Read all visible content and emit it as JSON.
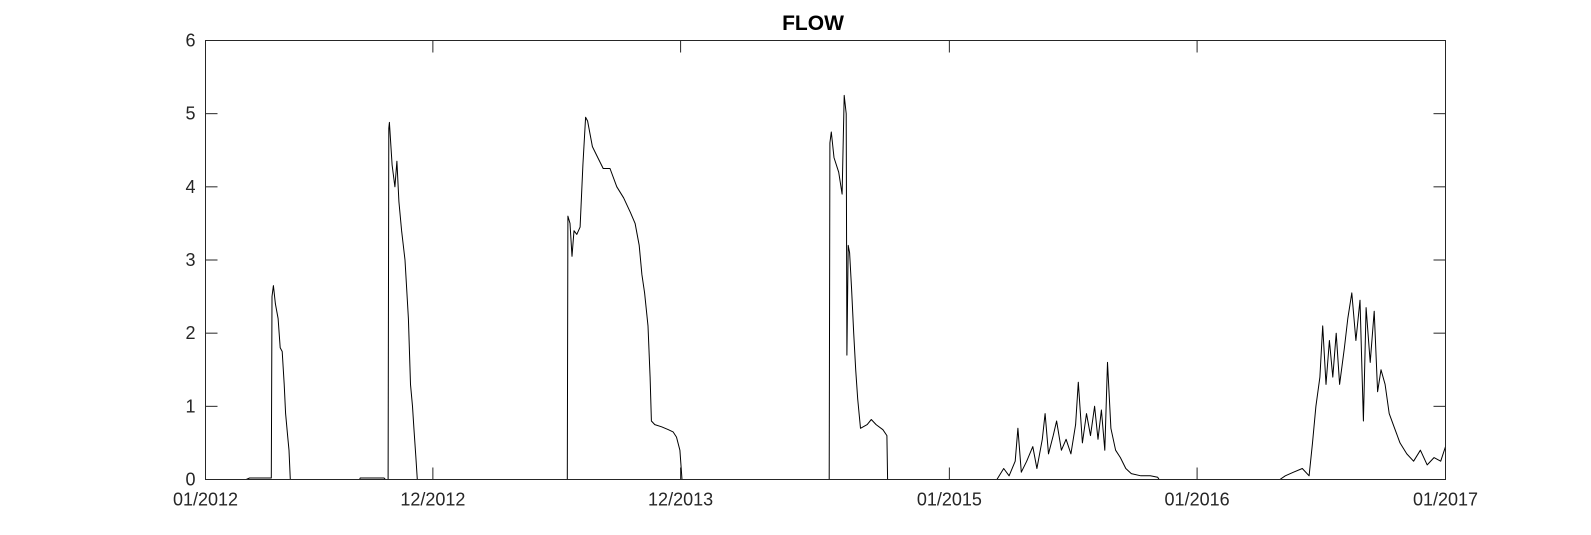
{
  "chart_data": {
    "type": "line",
    "title": "FLOW",
    "xlabel": "",
    "ylabel": "",
    "x_axis": {
      "type": "date",
      "range": [
        "2012-01-01",
        "2017-01-01"
      ],
      "ticks": [
        {
          "date": "2012-01-01",
          "label": "01/2012"
        },
        {
          "date": "2012-12-01",
          "label": "12/2012"
        },
        {
          "date": "2013-12-01",
          "label": "12/2013"
        },
        {
          "date": "2015-01-01",
          "label": "01/2015"
        },
        {
          "date": "2016-01-01",
          "label": "01/2016"
        },
        {
          "date": "2017-01-01",
          "label": "01/2017"
        }
      ]
    },
    "ylim": [
      0,
      6
    ],
    "yticks": [
      0,
      1,
      2,
      3,
      4,
      5,
      6
    ],
    "grid": false,
    "legend": "none",
    "line_color": "#000000",
    "series": [
      {
        "points": [
          [
            "2012-01-01",
            0
          ],
          [
            "2012-03-01",
            0
          ],
          [
            "2012-03-06",
            0.02
          ],
          [
            "2012-04-07",
            0.02
          ],
          [
            "2012-04-08",
            2.5
          ],
          [
            "2012-04-10",
            2.65
          ],
          [
            "2012-04-13",
            2.4
          ],
          [
            "2012-04-17",
            2.2
          ],
          [
            "2012-04-20",
            1.8
          ],
          [
            "2012-04-23",
            1.75
          ],
          [
            "2012-04-26",
            1.3
          ],
          [
            "2012-04-28",
            0.9
          ],
          [
            "2012-05-01",
            0.6
          ],
          [
            "2012-05-03",
            0.4
          ],
          [
            "2012-05-05",
            0
          ],
          [
            "2012-08-15",
            0
          ],
          [
            "2012-08-16",
            0.02
          ],
          [
            "2012-09-20",
            0.02
          ],
          [
            "2012-09-22",
            0
          ],
          [
            "2012-09-26",
            0
          ],
          [
            "2012-09-27",
            4.8
          ],
          [
            "2012-09-28",
            4.88
          ],
          [
            "2012-10-02",
            4.3
          ],
          [
            "2012-10-06",
            4.0
          ],
          [
            "2012-10-09",
            4.35
          ],
          [
            "2012-10-12",
            3.8
          ],
          [
            "2012-10-16",
            3.4
          ],
          [
            "2012-10-21",
            3.0
          ],
          [
            "2012-10-26",
            2.2
          ],
          [
            "2012-10-29",
            1.3
          ],
          [
            "2012-11-01",
            1.0
          ],
          [
            "2012-11-03",
            0.7
          ],
          [
            "2012-11-06",
            0.3
          ],
          [
            "2012-11-08",
            0
          ],
          [
            "2013-06-17",
            0
          ],
          [
            "2013-06-18",
            3.6
          ],
          [
            "2013-06-21",
            3.5
          ],
          [
            "2013-06-24",
            3.05
          ],
          [
            "2013-06-27",
            3.4
          ],
          [
            "2013-07-01",
            3.35
          ],
          [
            "2013-07-06",
            3.45
          ],
          [
            "2013-07-10",
            4.3
          ],
          [
            "2013-07-14",
            4.95
          ],
          [
            "2013-07-17",
            4.9
          ],
          [
            "2013-07-24",
            4.55
          ],
          [
            "2013-08-01",
            4.4
          ],
          [
            "2013-08-09",
            4.25
          ],
          [
            "2013-08-19",
            4.25
          ],
          [
            "2013-08-29",
            4.0
          ],
          [
            "2013-09-08",
            3.85
          ],
          [
            "2013-09-18",
            3.65
          ],
          [
            "2013-09-25",
            3.5
          ],
          [
            "2013-10-01",
            3.2
          ],
          [
            "2013-10-05",
            2.8
          ],
          [
            "2013-10-09",
            2.55
          ],
          [
            "2013-10-14",
            2.1
          ],
          [
            "2013-10-17",
            1.4
          ],
          [
            "2013-10-19",
            0.8
          ],
          [
            "2013-10-24",
            0.75
          ],
          [
            "2013-11-03",
            0.72
          ],
          [
            "2013-11-13",
            0.68
          ],
          [
            "2013-11-20",
            0.65
          ],
          [
            "2013-11-25",
            0.58
          ],
          [
            "2013-11-30",
            0.4
          ],
          [
            "2013-12-03",
            0
          ],
          [
            "2014-07-08",
            0
          ],
          [
            "2014-07-09",
            4.6
          ],
          [
            "2014-07-11",
            4.75
          ],
          [
            "2014-07-15",
            4.4
          ],
          [
            "2014-07-22",
            4.2
          ],
          [
            "2014-07-27",
            3.9
          ],
          [
            "2014-07-30",
            5.25
          ],
          [
            "2014-08-02",
            5.0
          ],
          [
            "2014-08-03",
            1.7
          ],
          [
            "2014-08-05",
            3.2
          ],
          [
            "2014-08-07",
            3.1
          ],
          [
            "2014-08-10",
            2.6
          ],
          [
            "2014-08-13",
            2.0
          ],
          [
            "2014-08-16",
            1.5
          ],
          [
            "2014-08-19",
            1.1
          ],
          [
            "2014-08-23",
            0.7
          ],
          [
            "2014-09-02",
            0.75
          ],
          [
            "2014-09-08",
            0.82
          ],
          [
            "2014-09-15",
            0.75
          ],
          [
            "2014-09-25",
            0.68
          ],
          [
            "2014-10-01",
            0.6
          ],
          [
            "2014-10-02",
            0
          ],
          [
            "2015-03-12",
            0
          ],
          [
            "2015-03-22",
            0.15
          ],
          [
            "2015-03-30",
            0.05
          ],
          [
            "2015-04-08",
            0.25
          ],
          [
            "2015-04-12",
            0.7
          ],
          [
            "2015-04-17",
            0.1
          ],
          [
            "2015-04-25",
            0.25
          ],
          [
            "2015-05-04",
            0.45
          ],
          [
            "2015-05-10",
            0.15
          ],
          [
            "2015-05-18",
            0.55
          ],
          [
            "2015-05-22",
            0.9
          ],
          [
            "2015-05-27",
            0.35
          ],
          [
            "2015-06-03",
            0.6
          ],
          [
            "2015-06-08",
            0.8
          ],
          [
            "2015-06-15",
            0.4
          ],
          [
            "2015-06-22",
            0.55
          ],
          [
            "2015-06-29",
            0.35
          ],
          [
            "2015-07-06",
            0.75
          ],
          [
            "2015-07-10",
            1.33
          ],
          [
            "2015-07-16",
            0.5
          ],
          [
            "2015-07-22",
            0.9
          ],
          [
            "2015-07-28",
            0.6
          ],
          [
            "2015-08-03",
            1.0
          ],
          [
            "2015-08-08",
            0.55
          ],
          [
            "2015-08-13",
            0.95
          ],
          [
            "2015-08-18",
            0.4
          ],
          [
            "2015-08-22",
            1.6
          ],
          [
            "2015-08-27",
            0.7
          ],
          [
            "2015-09-03",
            0.4
          ],
          [
            "2015-09-10",
            0.3
          ],
          [
            "2015-09-18",
            0.15
          ],
          [
            "2015-09-26",
            0.08
          ],
          [
            "2015-10-10",
            0.05
          ],
          [
            "2015-10-24",
            0.05
          ],
          [
            "2015-11-04",
            0.03
          ],
          [
            "2015-11-06",
            0
          ],
          [
            "2016-05-02",
            0
          ],
          [
            "2016-05-10",
            0.05
          ],
          [
            "2016-05-22",
            0.1
          ],
          [
            "2016-06-04",
            0.15
          ],
          [
            "2016-06-14",
            0.05
          ],
          [
            "2016-06-19",
            0.5
          ],
          [
            "2016-06-24",
            1.0
          ],
          [
            "2016-06-30",
            1.4
          ],
          [
            "2016-07-04",
            2.1
          ],
          [
            "2016-07-09",
            1.3
          ],
          [
            "2016-07-14",
            1.9
          ],
          [
            "2016-07-19",
            1.4
          ],
          [
            "2016-07-24",
            2.0
          ],
          [
            "2016-07-29",
            1.3
          ],
          [
            "2016-08-05",
            1.8
          ],
          [
            "2016-08-10",
            2.2
          ],
          [
            "2016-08-16",
            2.55
          ],
          [
            "2016-08-22",
            1.9
          ],
          [
            "2016-08-28",
            2.45
          ],
          [
            "2016-09-02",
            0.8
          ],
          [
            "2016-09-06",
            2.35
          ],
          [
            "2016-09-12",
            1.6
          ],
          [
            "2016-09-18",
            2.3
          ],
          [
            "2016-09-23",
            1.2
          ],
          [
            "2016-09-28",
            1.5
          ],
          [
            "2016-10-04",
            1.3
          ],
          [
            "2016-10-10",
            0.9
          ],
          [
            "2016-10-18",
            0.7
          ],
          [
            "2016-10-26",
            0.5
          ],
          [
            "2016-11-05",
            0.35
          ],
          [
            "2016-11-15",
            0.25
          ],
          [
            "2016-11-25",
            0.4
          ],
          [
            "2016-12-05",
            0.2
          ],
          [
            "2016-12-15",
            0.3
          ],
          [
            "2016-12-25",
            0.25
          ],
          [
            "2017-01-01",
            0.45
          ]
        ]
      }
    ]
  }
}
